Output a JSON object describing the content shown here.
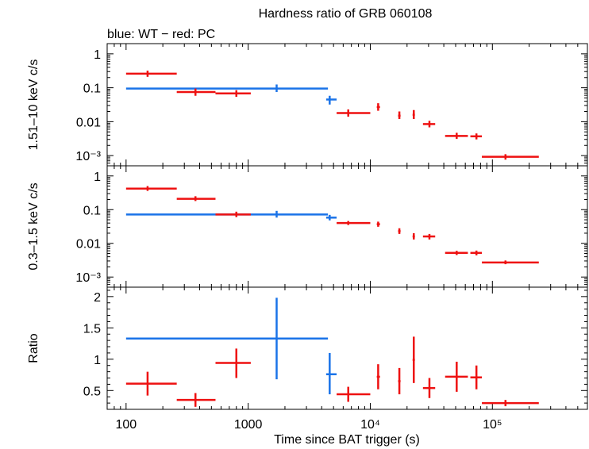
{
  "chart_data": [
    {
      "id": "hard",
      "type": "scatter",
      "title": "Hardness ratio of GRB 060108",
      "subtitle": "blue: WT − red: PC",
      "ylabel": "1.51–10 keV c/s",
      "yscale": "log",
      "ylim": [
        0.0005,
        2.0
      ],
      "yticks": [
        {
          "v": 1,
          "t": "1"
        },
        {
          "v": 0.1,
          "t": "0.1"
        },
        {
          "v": 0.01,
          "t": "0.01"
        },
        {
          "v": 0.001,
          "t": "10⁻³"
        }
      ],
      "series": [
        {
          "name": "WT",
          "color": "#1a73e8",
          "points": [
            {
              "x": 1710,
              "xlo": 100,
              "xhi": 4500,
              "y": 0.095,
              "ylo": 0.075,
              "yhi": 0.125
            },
            {
              "x": 4650,
              "xlo": 4350,
              "xhi": 5300,
              "y": 0.045,
              "ylo": 0.032,
              "yhi": 0.058
            }
          ]
        },
        {
          "name": "PC",
          "color": "#ee1111",
          "points": [
            {
              "x": 150,
              "xlo": 100,
              "xhi": 260,
              "y": 0.26,
              "ylo": 0.21,
              "yhi": 0.32
            },
            {
              "x": 370,
              "xlo": 260,
              "xhi": 540,
              "y": 0.075,
              "ylo": 0.058,
              "yhi": 0.095
            },
            {
              "x": 800,
              "xlo": 540,
              "xhi": 1050,
              "y": 0.068,
              "ylo": 0.054,
              "yhi": 0.085
            },
            {
              "x": 6600,
              "xlo": 5300,
              "xhi": 10000,
              "y": 0.018,
              "ylo": 0.014,
              "yhi": 0.023
            },
            {
              "x": 11600,
              "xlo": 11300,
              "xhi": 12000,
              "y": 0.027,
              "ylo": 0.021,
              "yhi": 0.035
            },
            {
              "x": 17300,
              "xlo": 16900,
              "xhi": 17700,
              "y": 0.015,
              "ylo": 0.012,
              "yhi": 0.02
            },
            {
              "x": 22700,
              "xlo": 22200,
              "xhi": 23200,
              "y": 0.016,
              "ylo": 0.012,
              "yhi": 0.022
            },
            {
              "x": 30500,
              "xlo": 27000,
              "xhi": 34000,
              "y": 0.0085,
              "ylo": 0.0068,
              "yhi": 0.0106
            },
            {
              "x": 51000,
              "xlo": 41000,
              "xhi": 63000,
              "y": 0.0038,
              "ylo": 0.0031,
              "yhi": 0.0047
            },
            {
              "x": 74000,
              "xlo": 66000,
              "xhi": 82000,
              "y": 0.0037,
              "ylo": 0.003,
              "yhi": 0.0045
            },
            {
              "x": 128000,
              "xlo": 82000,
              "xhi": 240000,
              "y": 0.00092,
              "ylo": 0.00076,
              "yhi": 0.0011
            }
          ]
        }
      ]
    },
    {
      "id": "soft",
      "type": "scatter",
      "ylabel": "0.3–1.5 keV c/s",
      "yscale": "log",
      "ylim": [
        0.0005,
        2.0
      ],
      "yticks": [
        {
          "v": 1,
          "t": "1"
        },
        {
          "v": 0.1,
          "t": "0.1"
        },
        {
          "v": 0.01,
          "t": "0.01"
        },
        {
          "v": 0.001,
          "t": "10⁻³"
        }
      ],
      "series": [
        {
          "name": "WT",
          "color": "#1a73e8",
          "points": [
            {
              "x": 1710,
              "xlo": 100,
              "xhi": 4500,
              "y": 0.072,
              "ylo": 0.058,
              "yhi": 0.092
            },
            {
              "x": 4650,
              "xlo": 4350,
              "xhi": 5300,
              "y": 0.058,
              "ylo": 0.048,
              "yhi": 0.07
            }
          ]
        },
        {
          "name": "PC",
          "color": "#ee1111",
          "points": [
            {
              "x": 150,
              "xlo": 100,
              "xhi": 260,
              "y": 0.42,
              "ylo": 0.36,
              "yhi": 0.5
            },
            {
              "x": 370,
              "xlo": 260,
              "xhi": 540,
              "y": 0.21,
              "ylo": 0.18,
              "yhi": 0.25
            },
            {
              "x": 800,
              "xlo": 540,
              "xhi": 1050,
              "y": 0.072,
              "ylo": 0.06,
              "yhi": 0.087
            },
            {
              "x": 6600,
              "xlo": 5300,
              "xhi": 10000,
              "y": 0.04,
              "ylo": 0.035,
              "yhi": 0.046
            },
            {
              "x": 11600,
              "xlo": 11300,
              "xhi": 12000,
              "y": 0.037,
              "ylo": 0.031,
              "yhi": 0.044
            },
            {
              "x": 17300,
              "xlo": 16900,
              "xhi": 17700,
              "y": 0.023,
              "ylo": 0.019,
              "yhi": 0.028
            },
            {
              "x": 22700,
              "xlo": 22200,
              "xhi": 23200,
              "y": 0.016,
              "ylo": 0.013,
              "yhi": 0.02
            },
            {
              "x": 30500,
              "xlo": 27000,
              "xhi": 34000,
              "y": 0.016,
              "ylo": 0.013,
              "yhi": 0.019
            },
            {
              "x": 51000,
              "xlo": 41000,
              "xhi": 63000,
              "y": 0.0052,
              "ylo": 0.0045,
              "yhi": 0.006
            },
            {
              "x": 74000,
              "xlo": 66000,
              "xhi": 82000,
              "y": 0.0052,
              "ylo": 0.0044,
              "yhi": 0.0061
            },
            {
              "x": 128000,
              "xlo": 82000,
              "xhi": 240000,
              "y": 0.0027,
              "ylo": 0.0024,
              "yhi": 0.0031
            }
          ]
        }
      ]
    },
    {
      "id": "ratio",
      "type": "scatter",
      "ylabel": "Ratio",
      "xlabel": "Time since BAT trigger (s)",
      "yscale": "linear",
      "ylim": [
        0.2,
        2.15
      ],
      "yticks": [
        {
          "v": 0.5,
          "t": "0.5"
        },
        {
          "v": 1,
          "t": "1"
        },
        {
          "v": 1.5,
          "t": "1.5"
        },
        {
          "v": 2,
          "t": "2"
        }
      ],
      "xscale": "log",
      "xlim": [
        70,
        600000
      ],
      "xticks": [
        {
          "v": 100,
          "t": "100"
        },
        {
          "v": 1000,
          "t": "1000"
        },
        {
          "v": 10000,
          "t": "10⁴"
        },
        {
          "v": 100000,
          "t": "10⁵"
        }
      ],
      "series": [
        {
          "name": "WT",
          "color": "#1a73e8",
          "points": [
            {
              "x": 1710,
              "xlo": 100,
              "xhi": 4500,
              "y": 1.33,
              "ylo": 0.68,
              "yhi": 1.98
            },
            {
              "x": 4650,
              "xlo": 4350,
              "xhi": 5300,
              "y": 0.76,
              "ylo": 0.44,
              "yhi": 1.1
            }
          ]
        },
        {
          "name": "PC",
          "color": "#ee1111",
          "points": [
            {
              "x": 150,
              "xlo": 100,
              "xhi": 260,
              "y": 0.61,
              "ylo": 0.42,
              "yhi": 0.8
            },
            {
              "x": 370,
              "xlo": 260,
              "xhi": 540,
              "y": 0.35,
              "ylo": 0.24,
              "yhi": 0.46
            },
            {
              "x": 800,
              "xlo": 540,
              "xhi": 1050,
              "y": 0.94,
              "ylo": 0.7,
              "yhi": 1.17
            },
            {
              "x": 6600,
              "xlo": 5300,
              "xhi": 10000,
              "y": 0.44,
              "ylo": 0.32,
              "yhi": 0.56
            },
            {
              "x": 11600,
              "xlo": 11300,
              "xhi": 12000,
              "y": 0.72,
              "ylo": 0.52,
              "yhi": 0.92
            },
            {
              "x": 17300,
              "xlo": 16900,
              "xhi": 17700,
              "y": 0.65,
              "ylo": 0.44,
              "yhi": 0.86
            },
            {
              "x": 22700,
              "xlo": 22200,
              "xhi": 23200,
              "y": 0.99,
              "ylo": 0.62,
              "yhi": 1.36
            },
            {
              "x": 30500,
              "xlo": 27000,
              "xhi": 34000,
              "y": 0.54,
              "ylo": 0.38,
              "yhi": 0.7
            },
            {
              "x": 51000,
              "xlo": 41000,
              "xhi": 63000,
              "y": 0.72,
              "ylo": 0.48,
              "yhi": 0.96
            },
            {
              "x": 74000,
              "xlo": 66000,
              "xhi": 82000,
              "y": 0.71,
              "ylo": 0.52,
              "yhi": 0.9
            },
            {
              "x": 128000,
              "xlo": 82000,
              "xhi": 240000,
              "y": 0.3,
              "ylo": 0.25,
              "yhi": 0.35
            }
          ]
        }
      ]
    }
  ]
}
